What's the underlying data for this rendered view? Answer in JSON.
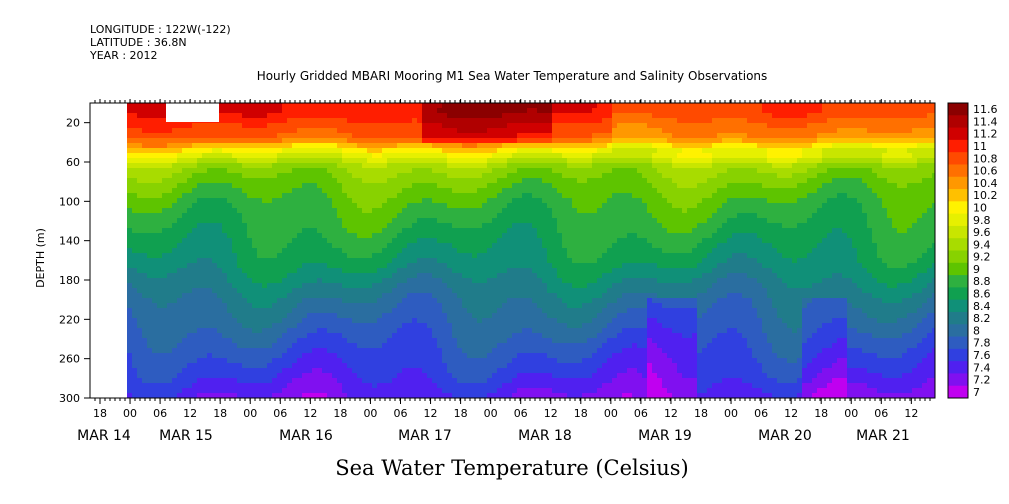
{
  "header": {
    "longitude": "LONGITUDE : 122W(-122)",
    "latitude": "LATITUDE : 36.8N",
    "year": "YEAR : 2012"
  },
  "chart_data": {
    "type": "heatmap",
    "title": "Hourly Gridded MBARI Mooring M1 Sea Water Temperature and Salinity Observations",
    "xlabel": "",
    "ylabel": "DEPTH (m)",
    "bottom_label": "Sea Water Temperature (Celsius)",
    "x_ticks_hours": [
      "18",
      "00",
      "06",
      "12",
      "18",
      "00",
      "06",
      "12",
      "18",
      "00",
      "06",
      "12",
      "18",
      "00",
      "06",
      "12",
      "18",
      "00",
      "06",
      "12",
      "18",
      "00",
      "06",
      "12",
      "18",
      "00",
      "06",
      "12",
      "18",
      "00",
      "06",
      "12"
    ],
    "x_day_labels": [
      "MAR 14",
      "MAR 15",
      "MAR 16",
      "MAR 17",
      "MAR 18",
      "MAR 19",
      "MAR 20",
      "MAR 21"
    ],
    "y_ticks": [
      "20",
      "60",
      "100",
      "140",
      "180",
      "220",
      "260",
      "300"
    ],
    "ylim": [
      300,
      0
    ],
    "colorbar": {
      "labels": [
        "11.6",
        "11.4",
        "11.2",
        "11",
        "10.8",
        "10.6",
        "10.4",
        "10.2",
        "10",
        "9.8",
        "9.6",
        "9.4",
        "9.2",
        "9",
        "8.8",
        "8.6",
        "8.4",
        "8.2",
        "8",
        "7.8",
        "7.6",
        "7.4",
        "7.2",
        "7"
      ],
      "colors": [
        "#8b0000",
        "#b00000",
        "#d00000",
        "#ff1e00",
        "#ff4a00",
        "#ff7000",
        "#ff9800",
        "#ffc000",
        "#fff200",
        "#e6f000",
        "#c8e600",
        "#a8dc00",
        "#88d200",
        "#5ec400",
        "#2eb040",
        "#10a050",
        "#109078",
        "#207c8a",
        "#2a6ea0",
        "#2e5cc0",
        "#3040e0",
        "#5020f0",
        "#8010f0",
        "#c000f0"
      ]
    },
    "profile": {
      "depths_m": [
        10,
        20,
        35,
        50,
        65,
        80,
        100,
        130,
        160,
        200,
        240,
        280,
        300
      ],
      "temps_c": [
        11.2,
        11.0,
        10.8,
        10.0,
        9.4,
        9.2,
        9.0,
        8.8,
        8.6,
        8.2,
        7.9,
        7.6,
        7.4
      ]
    }
  }
}
